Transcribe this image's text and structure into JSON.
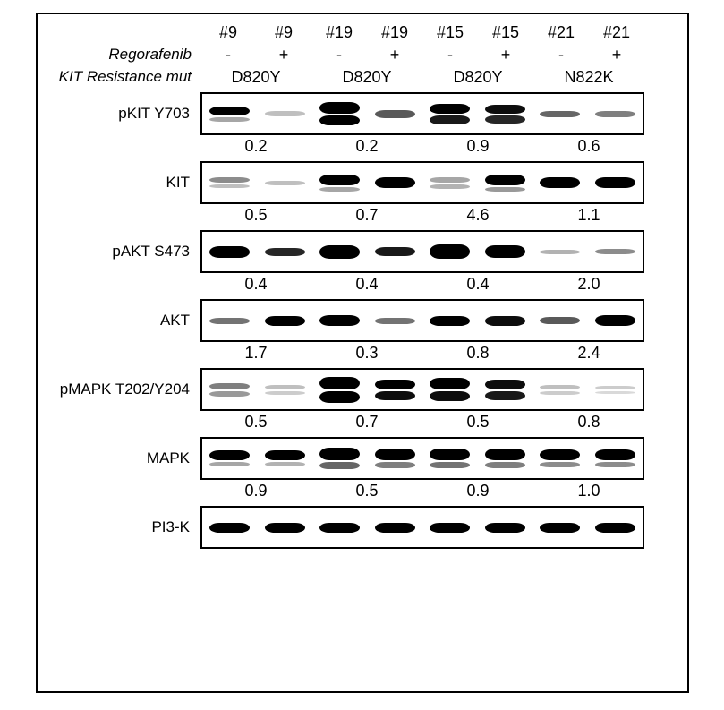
{
  "samples": [
    "#9",
    "#9",
    "#19",
    "#19",
    "#15",
    "#15",
    "#21",
    "#21"
  ],
  "regorafenib_row_label": "Regorafenib",
  "regorafenib": [
    "-",
    "+",
    "-",
    "+",
    "-",
    "+",
    "-",
    "+"
  ],
  "mutation_row_label": "KIT Resistance mut",
  "mutations": [
    "D820Y",
    "D820Y",
    "D820Y",
    "N822K"
  ],
  "blots": [
    {
      "label": "pKIT Y703",
      "bands": [
        [
          {
            "h": 10,
            "o": 1.0
          },
          {
            "h": 5,
            "o": 0.35
          }
        ],
        [
          {
            "h": 6,
            "o": 0.25
          }
        ],
        [
          {
            "h": 13,
            "o": 1.0
          },
          {
            "h": 11,
            "o": 1.0
          }
        ],
        [
          {
            "h": 9,
            "o": 0.65
          }
        ],
        [
          {
            "h": 11,
            "o": 1.0
          },
          {
            "h": 10,
            "o": 0.9
          }
        ],
        [
          {
            "h": 10,
            "o": 0.95
          },
          {
            "h": 9,
            "o": 0.85
          }
        ],
        [
          {
            "h": 7,
            "o": 0.6
          }
        ],
        [
          {
            "h": 7,
            "o": 0.5
          }
        ]
      ],
      "quant": [
        "0.2",
        "0.2",
        "0.9",
        "0.6"
      ]
    },
    {
      "label": "KIT",
      "bands": [
        [
          {
            "h": 6,
            "o": 0.45
          },
          {
            "h": 4,
            "o": 0.25
          }
        ],
        [
          {
            "h": 5,
            "o": 0.25
          }
        ],
        [
          {
            "h": 12,
            "o": 1.0
          },
          {
            "h": 5,
            "o": 0.35
          }
        ],
        [
          {
            "h": 12,
            "o": 1.0
          }
        ],
        [
          {
            "h": 6,
            "o": 0.35
          },
          {
            "h": 5,
            "o": 0.3
          }
        ],
        [
          {
            "h": 12,
            "o": 1.0
          },
          {
            "h": 5,
            "o": 0.4
          }
        ],
        [
          {
            "h": 12,
            "o": 1.0
          }
        ],
        [
          {
            "h": 12,
            "o": 1.0
          }
        ]
      ],
      "quant": [
        "0.5",
        "0.7",
        "4.6",
        "1.1"
      ]
    },
    {
      "label": "pAKT S473",
      "bands": [
        [
          {
            "h": 13,
            "o": 1.0
          }
        ],
        [
          {
            "h": 9,
            "o": 0.85
          }
        ],
        [
          {
            "h": 15,
            "o": 1.0
          }
        ],
        [
          {
            "h": 10,
            "o": 0.9
          }
        ],
        [
          {
            "h": 16,
            "o": 1.0
          }
        ],
        [
          {
            "h": 14,
            "o": 1.0
          }
        ],
        [
          {
            "h": 5,
            "o": 0.3
          }
        ],
        [
          {
            "h": 6,
            "o": 0.45
          }
        ]
      ],
      "quant": [
        "0.4",
        "0.4",
        "0.4",
        "2.0"
      ]
    },
    {
      "label": "AKT",
      "bands": [
        [
          {
            "h": 7,
            "o": 0.55
          }
        ],
        [
          {
            "h": 11,
            "o": 1.0
          }
        ],
        [
          {
            "h": 12,
            "o": 1.0
          }
        ],
        [
          {
            "h": 7,
            "o": 0.55
          }
        ],
        [
          {
            "h": 11,
            "o": 1.0
          }
        ],
        [
          {
            "h": 11,
            "o": 0.95
          }
        ],
        [
          {
            "h": 8,
            "o": 0.65
          }
        ],
        [
          {
            "h": 12,
            "o": 1.0
          }
        ]
      ],
      "quant": [
        "1.7",
        "0.3",
        "0.8",
        "2.4"
      ]
    },
    {
      "label": "pMAPK T202/Y204",
      "bands": [
        [
          {
            "h": 7,
            "o": 0.5
          },
          {
            "h": 6,
            "o": 0.4
          }
        ],
        [
          {
            "h": 5,
            "o": 0.25
          },
          {
            "h": 4,
            "o": 0.2
          }
        ],
        [
          {
            "h": 14,
            "o": 1.0
          },
          {
            "h": 13,
            "o": 1.0
          }
        ],
        [
          {
            "h": 11,
            "o": 1.0
          },
          {
            "h": 10,
            "o": 0.95
          }
        ],
        [
          {
            "h": 13,
            "o": 1.0
          },
          {
            "h": 11,
            "o": 0.95
          }
        ],
        [
          {
            "h": 11,
            "o": 0.95
          },
          {
            "h": 10,
            "o": 0.9
          }
        ],
        [
          {
            "h": 5,
            "o": 0.25
          },
          {
            "h": 4,
            "o": 0.2
          }
        ],
        [
          {
            "h": 4,
            "o": 0.2
          },
          {
            "h": 3,
            "o": 0.15
          }
        ]
      ],
      "quant": [
        "0.5",
        "0.7",
        "0.5",
        "0.8"
      ]
    },
    {
      "label": "MAPK",
      "bands": [
        [
          {
            "h": 11,
            "o": 1.0
          },
          {
            "h": 5,
            "o": 0.35
          }
        ],
        [
          {
            "h": 11,
            "o": 1.0
          },
          {
            "h": 5,
            "o": 0.3
          }
        ],
        [
          {
            "h": 14,
            "o": 1.0
          },
          {
            "h": 8,
            "o": 0.6
          }
        ],
        [
          {
            "h": 13,
            "o": 1.0
          },
          {
            "h": 7,
            "o": 0.5
          }
        ],
        [
          {
            "h": 13,
            "o": 1.0
          },
          {
            "h": 7,
            "o": 0.55
          }
        ],
        [
          {
            "h": 13,
            "o": 1.0
          },
          {
            "h": 7,
            "o": 0.5
          }
        ],
        [
          {
            "h": 12,
            "o": 1.0
          },
          {
            "h": 6,
            "o": 0.45
          }
        ],
        [
          {
            "h": 12,
            "o": 1.0
          },
          {
            "h": 6,
            "o": 0.45
          }
        ]
      ],
      "quant": [
        "0.9",
        "0.5",
        "0.9",
        "1.0"
      ]
    },
    {
      "label": "PI3-K",
      "bands": [
        [
          {
            "h": 11,
            "o": 1.0
          }
        ],
        [
          {
            "h": 11,
            "o": 1.0
          }
        ],
        [
          {
            "h": 11,
            "o": 1.0
          }
        ],
        [
          {
            "h": 11,
            "o": 1.0
          }
        ],
        [
          {
            "h": 11,
            "o": 1.0
          }
        ],
        [
          {
            "h": 11,
            "o": 1.0
          }
        ],
        [
          {
            "h": 11,
            "o": 1.0
          }
        ],
        [
          {
            "h": 11,
            "o": 1.0
          }
        ]
      ],
      "quant": null
    }
  ],
  "colors": {
    "border": "#000000",
    "background": "#ffffff",
    "band": "#000000"
  }
}
